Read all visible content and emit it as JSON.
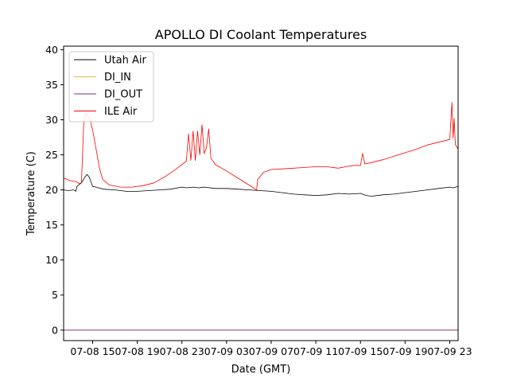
{
  "chart_data": {
    "type": "line",
    "title": "APOLLO DI Coolant Temperatures",
    "xlabel": "Date (GMT)",
    "ylabel": "Temperature (C)",
    "xlim": [
      12.4,
      47.75
    ],
    "ylim": [
      -1.5,
      40.5
    ],
    "x_unit": "hours since 07-08 00:00 GMT",
    "x_ticks": [
      {
        "value": 15,
        "label": "07-08 15"
      },
      {
        "value": 19,
        "label": "07-08 19"
      },
      {
        "value": 23,
        "label": "07-08 23"
      },
      {
        "value": 27,
        "label": "07-09 03"
      },
      {
        "value": 31,
        "label": "07-09 07"
      },
      {
        "value": 35,
        "label": "07-09 11"
      },
      {
        "value": 39,
        "label": "07-09 15"
      },
      {
        "value": 43,
        "label": "07-09 19"
      },
      {
        "value": 47,
        "label": "07-09 23"
      }
    ],
    "y_ticks": [
      0,
      5,
      10,
      15,
      20,
      25,
      30,
      35,
      40
    ],
    "legend_position": "top-left",
    "series": [
      {
        "name": "Utah Air",
        "color": "#000000",
        "x": [
          12.4,
          12.8,
          13.3,
          13.5,
          13.6,
          14.0,
          14.3,
          14.5,
          14.7,
          15.0,
          15.3,
          15.5,
          16.0,
          17.0,
          18.0,
          19.0,
          20.0,
          21.0,
          22.0,
          23.0,
          23.4,
          24.0,
          24.5,
          25.0,
          26.0,
          27.0,
          28.0,
          29.0,
          30.0,
          31.0,
          32.0,
          33.0,
          34.0,
          35.0,
          36.0,
          37.0,
          38.0,
          39.0,
          39.5,
          40.0,
          41.0,
          42.0,
          43.0,
          44.0,
          45.0,
          46.0,
          47.0,
          47.3,
          47.75
        ],
        "y": [
          20.0,
          19.9,
          20.0,
          19.8,
          20.5,
          21.0,
          21.8,
          22.2,
          21.8,
          20.5,
          20.4,
          20.3,
          20.1,
          20.0,
          19.8,
          19.8,
          19.9,
          20.0,
          20.1,
          20.4,
          20.3,
          20.4,
          20.3,
          20.4,
          20.2,
          20.2,
          20.1,
          20.0,
          19.9,
          19.8,
          19.6,
          19.4,
          19.3,
          19.2,
          19.3,
          19.5,
          19.4,
          19.5,
          19.2,
          19.1,
          19.3,
          19.4,
          19.6,
          19.8,
          20.0,
          20.2,
          20.4,
          20.3,
          20.5
        ]
      },
      {
        "name": "DI_IN",
        "color": "#e5c03b",
        "x": [
          12.4,
          47.75
        ],
        "y": [
          0.0,
          0.0
        ]
      },
      {
        "name": "DI_OUT",
        "color": "#7a2c8c",
        "x": [
          12.4,
          47.75
        ],
        "y": [
          0.0,
          0.0
        ]
      },
      {
        "name": "ILE Air",
        "color": "#ff0000",
        "x": [
          12.4,
          13.0,
          13.5,
          13.8,
          14.0,
          14.2,
          14.4,
          14.6,
          14.8,
          15.0,
          15.2,
          15.4,
          15.6,
          15.9,
          16.5,
          17.5,
          18.5,
          19.5,
          20.5,
          21.5,
          22.5,
          23.4,
          23.6,
          23.8,
          24.0,
          24.2,
          24.4,
          24.6,
          24.8,
          25.0,
          25.2,
          25.4,
          25.6,
          25.8,
          26.0,
          27.0,
          28.0,
          29.0,
          29.7,
          29.8,
          30.3,
          31.0,
          32.0,
          33.0,
          34.0,
          35.0,
          36.0,
          37.0,
          38.0,
          38.5,
          39.0,
          39.2,
          39.4,
          40.0,
          41.0,
          42.0,
          43.0,
          44.0,
          45.0,
          46.0,
          47.0,
          47.2,
          47.3,
          47.4,
          47.5,
          47.75
        ],
        "y": [
          21.7,
          21.3,
          21.2,
          20.9,
          21.0,
          29.5,
          31.0,
          30.5,
          29.8,
          28.5,
          26.8,
          25.0,
          23.2,
          21.5,
          20.7,
          20.4,
          20.4,
          20.6,
          21.0,
          21.9,
          23.0,
          24.1,
          28.0,
          24.2,
          28.4,
          24.2,
          28.4,
          25.0,
          29.3,
          25.2,
          26.0,
          28.7,
          24.5,
          24.1,
          23.6,
          22.7,
          21.7,
          20.7,
          20.0,
          21.5,
          22.5,
          22.9,
          23.0,
          23.1,
          23.2,
          23.3,
          23.3,
          23.1,
          23.4,
          23.5,
          23.5,
          25.2,
          23.7,
          23.9,
          24.3,
          24.8,
          25.3,
          25.8,
          26.4,
          26.8,
          27.2,
          32.5,
          27.4,
          30.2,
          26.5,
          25.8
        ]
      }
    ]
  }
}
